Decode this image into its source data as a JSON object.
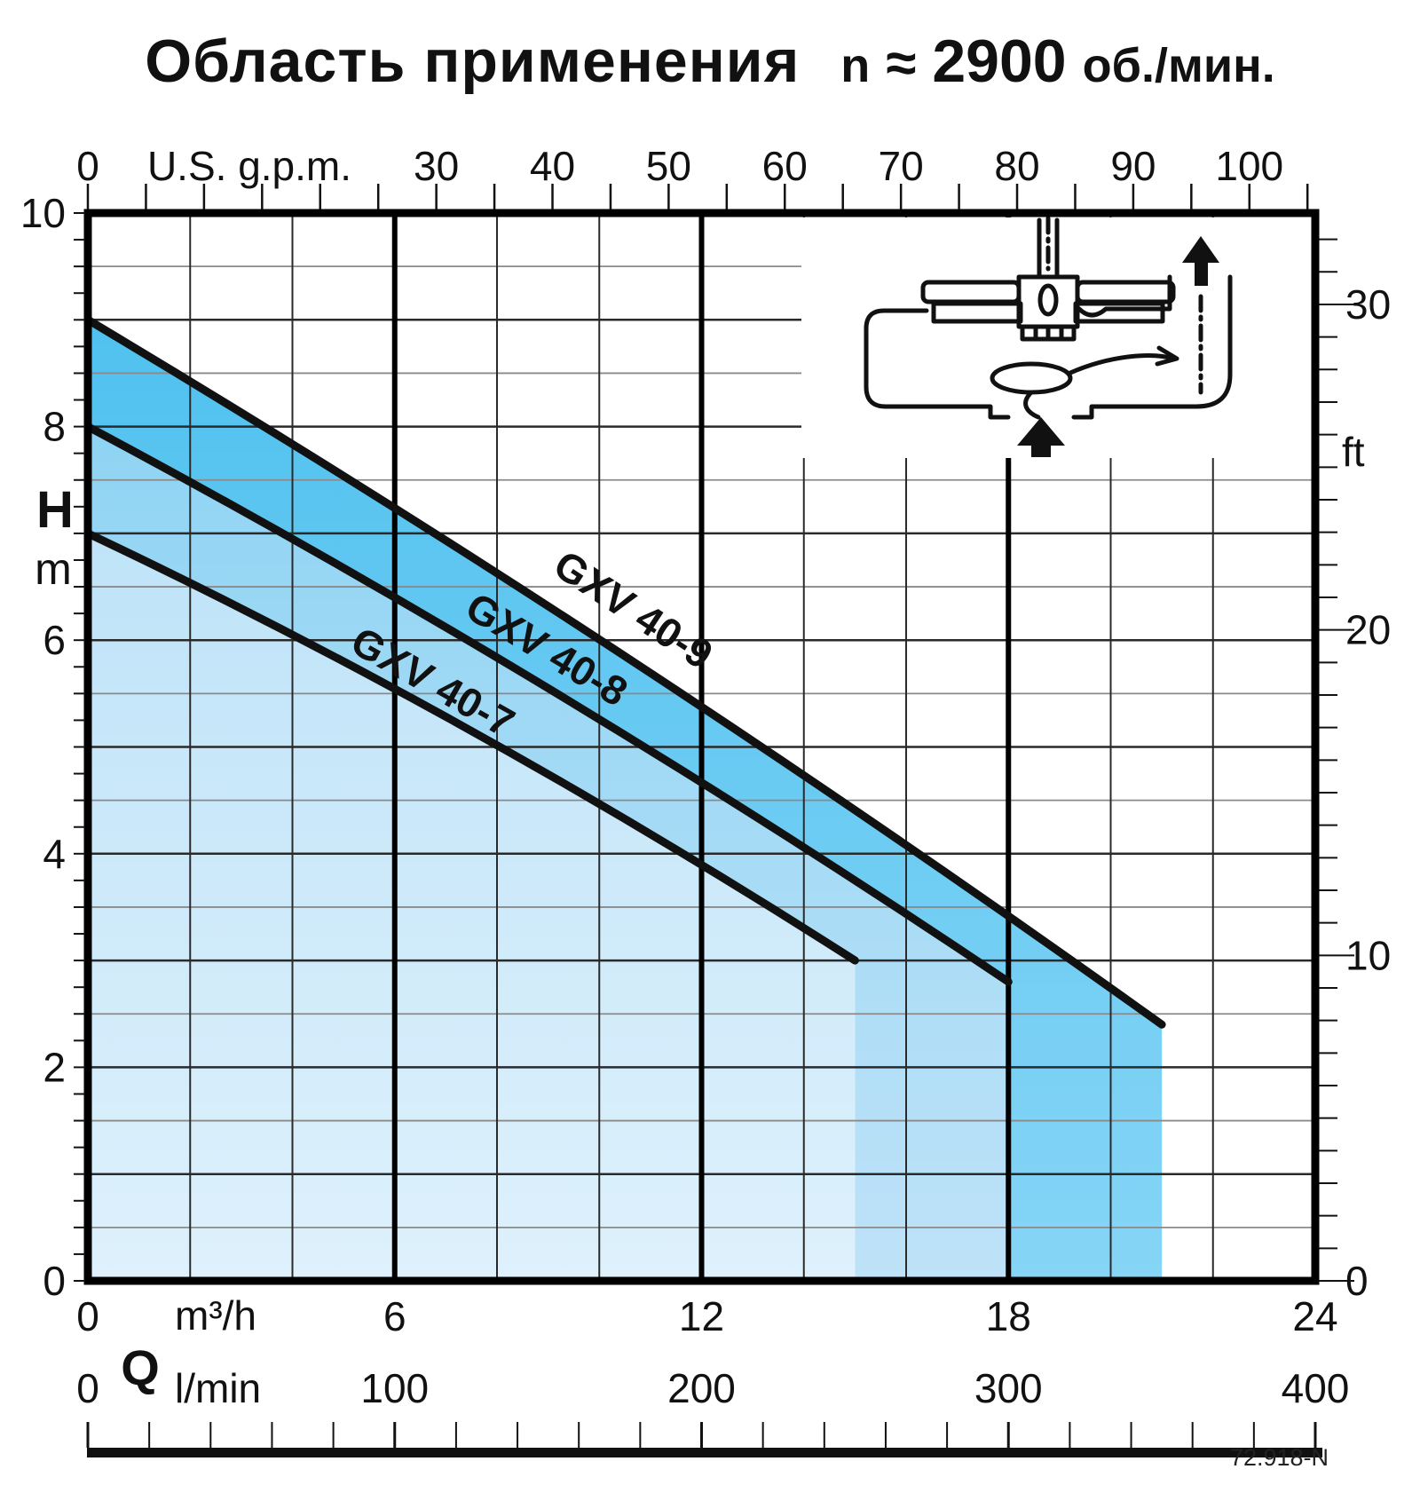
{
  "title": {
    "main": "Область применения",
    "speed_prefix": "n",
    "speed_approx": "≈",
    "speed_value": "2900",
    "speed_units": "об./мин."
  },
  "footer": {
    "ref": "72.918-N"
  },
  "chart_data": {
    "type": "area",
    "title": "Область применения n ≈ 2900 об./мин.",
    "description": "Pump application range chart, head H versus flow Q, three pump models as stacked shaded bands",
    "series": [
      {
        "name": "GXV 40-9",
        "points_q_h": [
          [
            0,
            9.0
          ],
          [
            21,
            2.4
          ]
        ],
        "band_color_top": "#50C1EF",
        "band_color_bottom": "#86D5F6",
        "label_pos": [
          705,
          700
        ],
        "label_angle": 33.3
      },
      {
        "name": "GXV 40-8",
        "points_q_h": [
          [
            0,
            8.0
          ],
          [
            18,
            2.8
          ]
        ],
        "band_color_top": "#8FD4F3",
        "band_color_bottom": "#BEE2F8",
        "label_pos": [
          608,
          745
        ],
        "label_angle": 31.0
      },
      {
        "name": "GXV 40-7",
        "points_q_h": [
          [
            0,
            7.0
          ],
          [
            15,
            3.0
          ]
        ],
        "band_color_top": "#BFE3F8",
        "band_color_bottom": "#DEF1FC",
        "label_pos": [
          480,
          782
        ],
        "label_angle": 29.5
      }
    ],
    "curve_bulge_m": 0.15,
    "curve_color": "#111111",
    "axes": {
      "top_gpm": {
        "unit": "U.S. g.p.m.",
        "min": 0,
        "max": 105,
        "tick_step": 5,
        "labels": [
          0,
          30,
          40,
          50,
          60,
          70,
          80,
          90,
          100
        ]
      },
      "left_H_m": {
        "name": "H",
        "unit": "m",
        "min": 0,
        "max": 10,
        "labels": [
          10,
          8,
          6,
          4,
          2,
          0
        ],
        "grid_step": 0.5,
        "tick_step": 0.25
      },
      "right_ft": {
        "unit": "ft",
        "labels": [
          30,
          20,
          10,
          0
        ],
        "tick_step": 1,
        "max_tick": 32
      },
      "bottom_m3h": {
        "name": "Q",
        "unit": "m³/h",
        "min": 0,
        "max": 24,
        "labels": [
          0,
          6,
          12,
          18,
          24
        ],
        "thick_gridlines": [
          6,
          12,
          18
        ],
        "grid_step": 2
      },
      "bottom_lmin": {
        "unit": "l/min",
        "min": 0,
        "max": 400,
        "labels": [
          0,
          100,
          200,
          300,
          400
        ],
        "ruler_tick_step": 20
      }
    },
    "conversions": {
      "m3h_per_gpm": 0.22712,
      "m_per_ft": 0.3048
    },
    "grid": {
      "on": true,
      "minor_color": "#8a8a8a",
      "major_color": "#2a2a2a",
      "thick_color": "#000000"
    }
  }
}
